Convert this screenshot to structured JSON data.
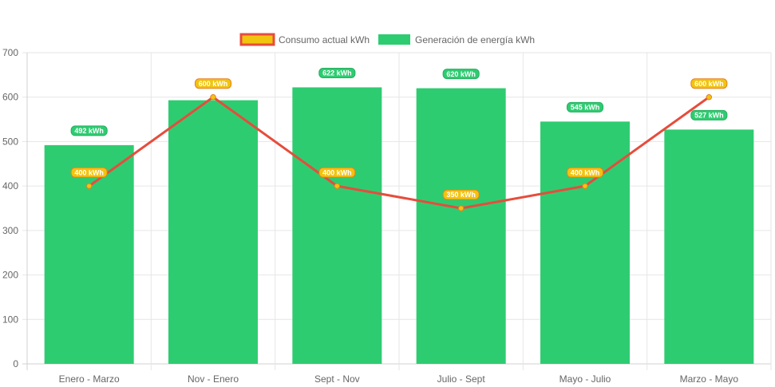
{
  "chart_data": {
    "type": "bar",
    "categories": [
      "Enero - Marzo",
      "Nov - Enero",
      "Sept - Nov",
      "Julio - Sept",
      "Mayo - Julio",
      "Marzo - Mayo"
    ],
    "series": [
      {
        "name": "Consumo actual kWh",
        "type": "line",
        "values": [
          400,
          600,
          400,
          350,
          400,
          600
        ],
        "labels": [
          "400 kWh",
          "600 kWh",
          "400 kWh",
          "350 kWh",
          "400 kWh",
          "600 kWh"
        ],
        "color": "#e74c3c",
        "fill": "#f1c40f"
      },
      {
        "name": "Generación de energía kWh",
        "type": "bar",
        "values": [
          492,
          593,
          622,
          620,
          545,
          527
        ],
        "labels": [
          "492 kWh",
          "",
          "622 kWh",
          "620 kWh",
          "545 kWh",
          "527 kWh"
        ],
        "color": "#2ecc71"
      }
    ],
    "ylim": [
      0,
      700
    ],
    "yticks": [
      0,
      100,
      200,
      300,
      400,
      500,
      600,
      700
    ],
    "grid": true,
    "legend": "top-center"
  }
}
